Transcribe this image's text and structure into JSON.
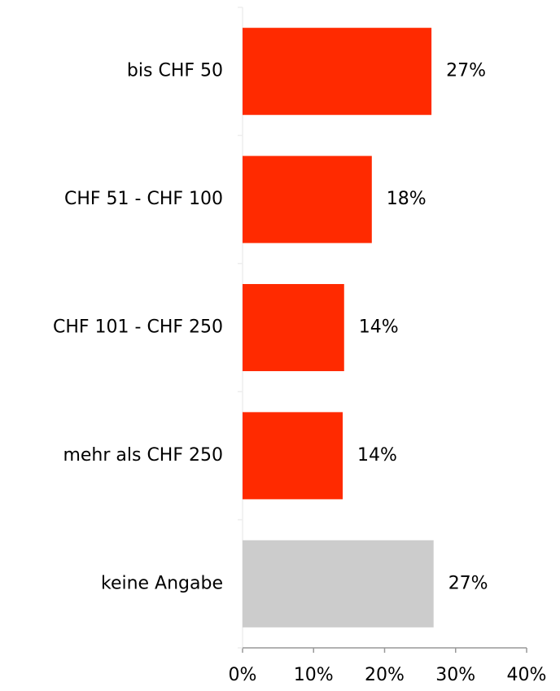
{
  "chart_data": {
    "type": "bar",
    "orientation": "horizontal",
    "categories": [
      "bis CHF 50",
      "CHF 51 - CHF 100",
      "CHF 101 - CHF 250",
      "mehr als CHF 250",
      "keine Angabe"
    ],
    "values": [
      26.6,
      18.2,
      14.3,
      14.1,
      26.9
    ],
    "value_labels": [
      "27%",
      "18%",
      "14%",
      "14%",
      "27%"
    ],
    "colors": [
      "#ff2a00",
      "#ff2a00",
      "#ff2a00",
      "#ff2a00",
      "#cccccc"
    ],
    "xlim": [
      0,
      40
    ],
    "xticks": [
      {
        "value": 0,
        "label": "0%"
      },
      {
        "value": 10,
        "label": "10%"
      },
      {
        "value": 20,
        "label": "20%"
      },
      {
        "value": 30,
        "label": "30%"
      },
      {
        "value": 40,
        "label": "40%"
      }
    ],
    "grid": false
  }
}
